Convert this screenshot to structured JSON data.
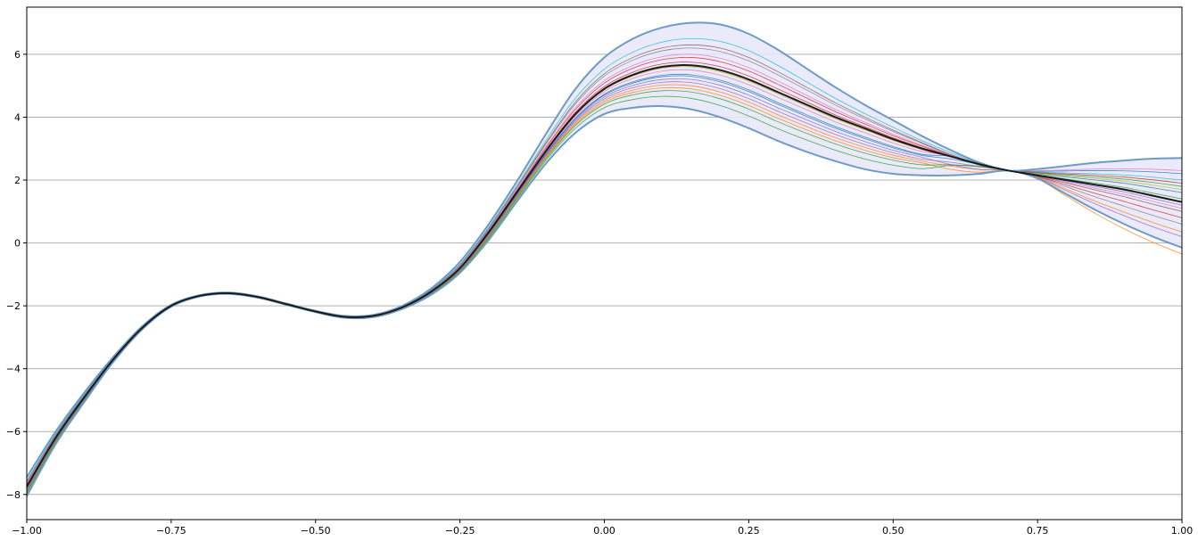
{
  "chart_data": {
    "type": "line",
    "title": "",
    "xlabel": "",
    "ylabel": "",
    "xlim": [
      -1.0,
      1.0
    ],
    "ylim": [
      -8.8,
      7.5
    ],
    "grid": "horizontal",
    "legend": "none",
    "x_ticks": [
      "−1.00",
      "−0.75",
      "−0.50",
      "−0.25",
      "0.00",
      "0.25",
      "0.50",
      "0.75",
      "1.00"
    ],
    "y_ticks": [
      "−8",
      "−6",
      "−4",
      "−2",
      "0",
      "2",
      "4",
      "6"
    ],
    "mean": {
      "color": "#1a1a1a",
      "points": [
        [
          -1.0,
          -7.75
        ],
        [
          -0.95,
          -6.2
        ],
        [
          -0.9,
          -4.9
        ],
        [
          -0.85,
          -3.7
        ],
        [
          -0.8,
          -2.7
        ],
        [
          -0.75,
          -2.0
        ],
        [
          -0.7,
          -1.68
        ],
        [
          -0.65,
          -1.6
        ],
        [
          -0.6,
          -1.72
        ],
        [
          -0.55,
          -1.95
        ],
        [
          -0.5,
          -2.18
        ],
        [
          -0.45,
          -2.35
        ],
        [
          -0.4,
          -2.32
        ],
        [
          -0.35,
          -2.05
        ],
        [
          -0.3,
          -1.55
        ],
        [
          -0.25,
          -0.8
        ],
        [
          -0.2,
          0.35
        ],
        [
          -0.15,
          1.65
        ],
        [
          -0.1,
          2.95
        ],
        [
          -0.05,
          4.1
        ],
        [
          0.0,
          4.9
        ],
        [
          0.05,
          5.35
        ],
        [
          0.1,
          5.6
        ],
        [
          0.15,
          5.65
        ],
        [
          0.2,
          5.5
        ],
        [
          0.25,
          5.2
        ],
        [
          0.3,
          4.8
        ],
        [
          0.35,
          4.4
        ],
        [
          0.4,
          4.0
        ],
        [
          0.45,
          3.65
        ],
        [
          0.5,
          3.3
        ],
        [
          0.55,
          3.0
        ],
        [
          0.6,
          2.75
        ],
        [
          0.65,
          2.5
        ],
        [
          0.7,
          2.3
        ],
        [
          0.75,
          2.15
        ],
        [
          0.8,
          2.0
        ],
        [
          0.85,
          1.85
        ],
        [
          0.9,
          1.7
        ],
        [
          0.95,
          1.5
        ],
        [
          1.0,
          1.3
        ]
      ]
    },
    "band": {
      "fill": "#e6e6fa",
      "edge": "#6e9ac6",
      "upper": [
        [
          -1.0,
          -7.45
        ],
        [
          -0.95,
          -6.0
        ],
        [
          -0.9,
          -4.75
        ],
        [
          -0.85,
          -3.62
        ],
        [
          -0.8,
          -2.65
        ],
        [
          -0.75,
          -1.97
        ],
        [
          -0.7,
          -1.66
        ],
        [
          -0.65,
          -1.58
        ],
        [
          -0.6,
          -1.7
        ],
        [
          -0.55,
          -1.93
        ],
        [
          -0.5,
          -2.16
        ],
        [
          -0.45,
          -2.32
        ],
        [
          -0.4,
          -2.29
        ],
        [
          -0.35,
          -2.0
        ],
        [
          -0.3,
          -1.45
        ],
        [
          -0.25,
          -0.6
        ],
        [
          -0.2,
          0.6
        ],
        [
          -0.15,
          2.0
        ],
        [
          -0.1,
          3.5
        ],
        [
          -0.05,
          4.9
        ],
        [
          0.0,
          5.9
        ],
        [
          0.05,
          6.5
        ],
        [
          0.1,
          6.85
        ],
        [
          0.15,
          7.0
        ],
        [
          0.2,
          6.95
        ],
        [
          0.25,
          6.65
        ],
        [
          0.3,
          6.15
        ],
        [
          0.35,
          5.55
        ],
        [
          0.4,
          4.95
        ],
        [
          0.45,
          4.4
        ],
        [
          0.5,
          3.9
        ],
        [
          0.55,
          3.4
        ],
        [
          0.6,
          2.95
        ],
        [
          0.65,
          2.55
        ],
        [
          0.7,
          2.3
        ],
        [
          0.75,
          2.35
        ],
        [
          0.8,
          2.45
        ],
        [
          0.85,
          2.55
        ],
        [
          0.9,
          2.62
        ],
        [
          0.95,
          2.68
        ],
        [
          1.0,
          2.7
        ]
      ],
      "lower": [
        [
          -1.0,
          -8.05
        ],
        [
          -0.95,
          -6.4
        ],
        [
          -0.9,
          -5.05
        ],
        [
          -0.85,
          -3.78
        ],
        [
          -0.8,
          -2.75
        ],
        [
          -0.75,
          -2.03
        ],
        [
          -0.7,
          -1.7
        ],
        [
          -0.65,
          -1.62
        ],
        [
          -0.6,
          -1.74
        ],
        [
          -0.55,
          -1.97
        ],
        [
          -0.5,
          -2.2
        ],
        [
          -0.45,
          -2.38
        ],
        [
          -0.4,
          -2.36
        ],
        [
          -0.35,
          -2.1
        ],
        [
          -0.3,
          -1.65
        ],
        [
          -0.25,
          -0.95
        ],
        [
          -0.2,
          0.1
        ],
        [
          -0.15,
          1.35
        ],
        [
          -0.1,
          2.55
        ],
        [
          -0.05,
          3.5
        ],
        [
          0.0,
          4.1
        ],
        [
          0.05,
          4.3
        ],
        [
          0.1,
          4.35
        ],
        [
          0.15,
          4.25
        ],
        [
          0.2,
          4.0
        ],
        [
          0.25,
          3.65
        ],
        [
          0.3,
          3.25
        ],
        [
          0.35,
          2.9
        ],
        [
          0.4,
          2.6
        ],
        [
          0.45,
          2.35
        ],
        [
          0.5,
          2.2
        ],
        [
          0.55,
          2.15
        ],
        [
          0.6,
          2.15
        ],
        [
          0.65,
          2.2
        ],
        [
          0.7,
          2.3
        ],
        [
          0.75,
          2.05
        ],
        [
          0.8,
          1.55
        ],
        [
          0.85,
          1.05
        ],
        [
          0.9,
          0.6
        ],
        [
          0.95,
          0.2
        ],
        [
          1.0,
          -0.15
        ]
      ]
    },
    "samples": [
      {
        "color": "#1f77b4",
        "peak": 5.3,
        "end": 1.6
      },
      {
        "color": "#ff7f0e",
        "peak": 4.9,
        "end": -0.35
      },
      {
        "color": "#2ca02c",
        "peak": 4.6,
        "end": 1.8
      },
      {
        "color": "#d62728",
        "peak": 5.9,
        "end": 0.8
      },
      {
        "color": "#9467bd",
        "peak": 5.1,
        "end": 1.2
      },
      {
        "color": "#8c564b",
        "peak": 6.3,
        "end": 1.0
      },
      {
        "color": "#e377c2",
        "peak": 5.5,
        "end": 2.3
      },
      {
        "color": "#7f7f7f",
        "peak": 6.2,
        "end": 0.6
      },
      {
        "color": "#bcbd22",
        "peak": 5.6,
        "end": 1.7
      },
      {
        "color": "#17becf",
        "peak": 6.5,
        "end": 2.0
      },
      {
        "color": "#1f77b4",
        "peak": 5.35,
        "end": 2.2
      },
      {
        "color": "#ff7f0e",
        "peak": 5.0,
        "end": 0.35
      },
      {
        "color": "#2ca02c",
        "peak": 4.8,
        "end": 1.4
      },
      {
        "color": "#d62728",
        "peak": 5.75,
        "end": 1.9
      },
      {
        "color": "#9467bd",
        "peak": 5.2,
        "end": 0.2
      },
      {
        "color": "#e377c2",
        "peak": 6.0,
        "end": 1.1
      }
    ]
  }
}
